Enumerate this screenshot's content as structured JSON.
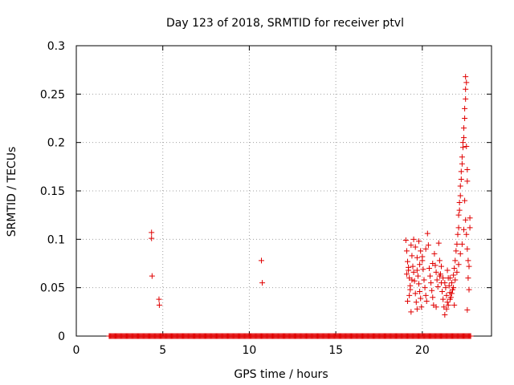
{
  "chart_data": {
    "type": "scatter",
    "title": "Day 123 of 2018, SRMTID for receiver ptvl",
    "xlabel": "GPS time / hours",
    "ylabel": "SRMTID / TECUs",
    "xlim": [
      0,
      24
    ],
    "ylim": [
      0,
      0.3
    ],
    "xticks": [
      0,
      5,
      10,
      15,
      20
    ],
    "yticks": [
      0,
      0.05,
      0.1,
      0.15,
      0.2,
      0.25,
      0.3
    ],
    "xtick_labels": [
      "0",
      "5",
      "10",
      "15",
      "20"
    ],
    "ytick_labels": [
      "0",
      "0.05",
      "0.1",
      "0.15",
      "0.2",
      "0.25",
      "0.3"
    ],
    "grid": true,
    "legend": "none",
    "marker": "+",
    "marker_color": "#e00000",
    "zero_band": {
      "y": 0,
      "x_start": 1.9,
      "x_end": 22.8,
      "step": 0.05
    },
    "series": [
      {
        "points": [
          [
            4.35,
            0.107
          ],
          [
            4.35,
            0.101
          ],
          [
            4.38,
            0.062
          ],
          [
            4.78,
            0.038
          ],
          [
            4.8,
            0.032
          ],
          [
            10.7,
            0.078
          ],
          [
            10.75,
            0.055
          ],
          [
            19.05,
            0.099
          ],
          [
            19.1,
            0.088
          ],
          [
            19.15,
            0.077
          ],
          [
            19.2,
            0.068
          ],
          [
            19.25,
            0.06
          ],
          [
            19.3,
            0.052
          ],
          [
            19.1,
            0.064
          ],
          [
            19.2,
            0.071
          ],
          [
            19.3,
            0.048
          ],
          [
            19.35,
            0.094
          ],
          [
            19.4,
            0.083
          ],
          [
            19.45,
            0.072
          ],
          [
            19.5,
            0.066
          ],
          [
            19.55,
            0.057
          ],
          [
            19.6,
            0.044
          ],
          [
            19.65,
            0.035
          ],
          [
            19.7,
            0.028
          ],
          [
            19.5,
            0.1
          ],
          [
            19.6,
            0.092
          ],
          [
            19.7,
            0.081
          ],
          [
            19.75,
            0.062
          ],
          [
            19.8,
            0.054
          ],
          [
            19.85,
            0.046
          ],
          [
            19.9,
            0.039
          ],
          [
            19.95,
            0.03
          ],
          [
            19.8,
            0.098
          ],
          [
            19.9,
            0.088
          ],
          [
            20.0,
            0.078
          ],
          [
            20.05,
            0.069
          ],
          [
            20.1,
            0.058
          ],
          [
            20.15,
            0.05
          ],
          [
            20.2,
            0.042
          ],
          [
            20.25,
            0.036
          ],
          [
            20.3,
            0.106
          ],
          [
            20.35,
            0.094
          ],
          [
            20.4,
            0.07
          ],
          [
            20.45,
            0.062
          ],
          [
            20.5,
            0.055
          ],
          [
            20.55,
            0.047
          ],
          [
            20.6,
            0.04
          ],
          [
            20.65,
            0.032
          ],
          [
            20.7,
            0.085
          ],
          [
            20.75,
            0.073
          ],
          [
            20.8,
            0.066
          ],
          [
            20.85,
            0.058
          ],
          [
            20.9,
            0.051
          ],
          [
            20.95,
            0.096
          ],
          [
            21.0,
            0.078
          ],
          [
            21.05,
            0.064
          ],
          [
            21.1,
            0.055
          ],
          [
            21.15,
            0.046
          ],
          [
            21.2,
            0.038
          ],
          [
            21.25,
            0.03
          ],
          [
            21.3,
            0.022
          ],
          [
            21.1,
            0.072
          ],
          [
            21.2,
            0.06
          ],
          [
            21.35,
            0.05
          ],
          [
            21.4,
            0.042
          ],
          [
            21.45,
            0.035
          ],
          [
            21.5,
            0.06
          ],
          [
            21.55,
            0.052
          ],
          [
            21.6,
            0.045
          ],
          [
            21.65,
            0.04
          ],
          [
            21.7,
            0.055
          ],
          [
            21.75,
            0.048
          ],
          [
            21.8,
            0.063
          ],
          [
            21.85,
            0.07
          ],
          [
            21.9,
            0.078
          ],
          [
            21.95,
            0.088
          ],
          [
            22.0,
            0.095
          ],
          [
            22.05,
            0.105
          ],
          [
            22.1,
            0.112
          ],
          [
            22.1,
            0.125
          ],
          [
            22.15,
            0.13
          ],
          [
            22.15,
            0.138
          ],
          [
            22.2,
            0.145
          ],
          [
            22.2,
            0.155
          ],
          [
            22.25,
            0.162
          ],
          [
            22.25,
            0.17
          ],
          [
            22.3,
            0.178
          ],
          [
            22.3,
            0.185
          ],
          [
            22.35,
            0.195
          ],
          [
            22.35,
            0.2
          ],
          [
            22.4,
            0.205
          ],
          [
            22.4,
            0.215
          ],
          [
            22.45,
            0.225
          ],
          [
            22.45,
            0.235
          ],
          [
            22.5,
            0.245
          ],
          [
            22.5,
            0.255
          ],
          [
            22.55,
            0.262
          ],
          [
            22.5,
            0.268
          ],
          [
            22.55,
            0.196
          ],
          [
            22.6,
            0.172
          ],
          [
            22.6,
            0.16
          ],
          [
            22.45,
            0.14
          ],
          [
            22.5,
            0.12
          ],
          [
            22.55,
            0.105
          ],
          [
            22.6,
            0.09
          ],
          [
            22.65,
            0.078
          ],
          [
            22.7,
            0.072
          ],
          [
            22.65,
            0.06
          ],
          [
            22.7,
            0.048
          ],
          [
            22.75,
            0.122
          ],
          [
            22.75,
            0.112
          ],
          [
            22.6,
            0.027
          ],
          [
            22.4,
            0.11
          ],
          [
            22.3,
            0.095
          ],
          [
            22.2,
            0.085
          ],
          [
            22.1,
            0.074
          ],
          [
            22.0,
            0.066
          ],
          [
            21.9,
            0.058
          ],
          [
            21.8,
            0.05
          ],
          [
            21.7,
            0.044
          ],
          [
            21.6,
            0.038
          ],
          [
            21.5,
            0.032
          ],
          [
            21.4,
            0.028
          ],
          [
            20.2,
            0.09
          ],
          [
            20.0,
            0.082
          ],
          [
            19.85,
            0.074
          ],
          [
            19.7,
            0.068
          ],
          [
            19.4,
            0.058
          ],
          [
            19.25,
            0.042
          ],
          [
            19.15,
            0.036
          ],
          [
            19.35,
            0.025
          ],
          [
            20.6,
            0.075
          ],
          [
            20.8,
            0.03
          ],
          [
            21.0,
            0.062
          ],
          [
            21.3,
            0.055
          ],
          [
            21.45,
            0.068
          ],
          [
            21.6,
            0.06
          ],
          [
            21.85,
            0.032
          ]
        ]
      }
    ]
  }
}
